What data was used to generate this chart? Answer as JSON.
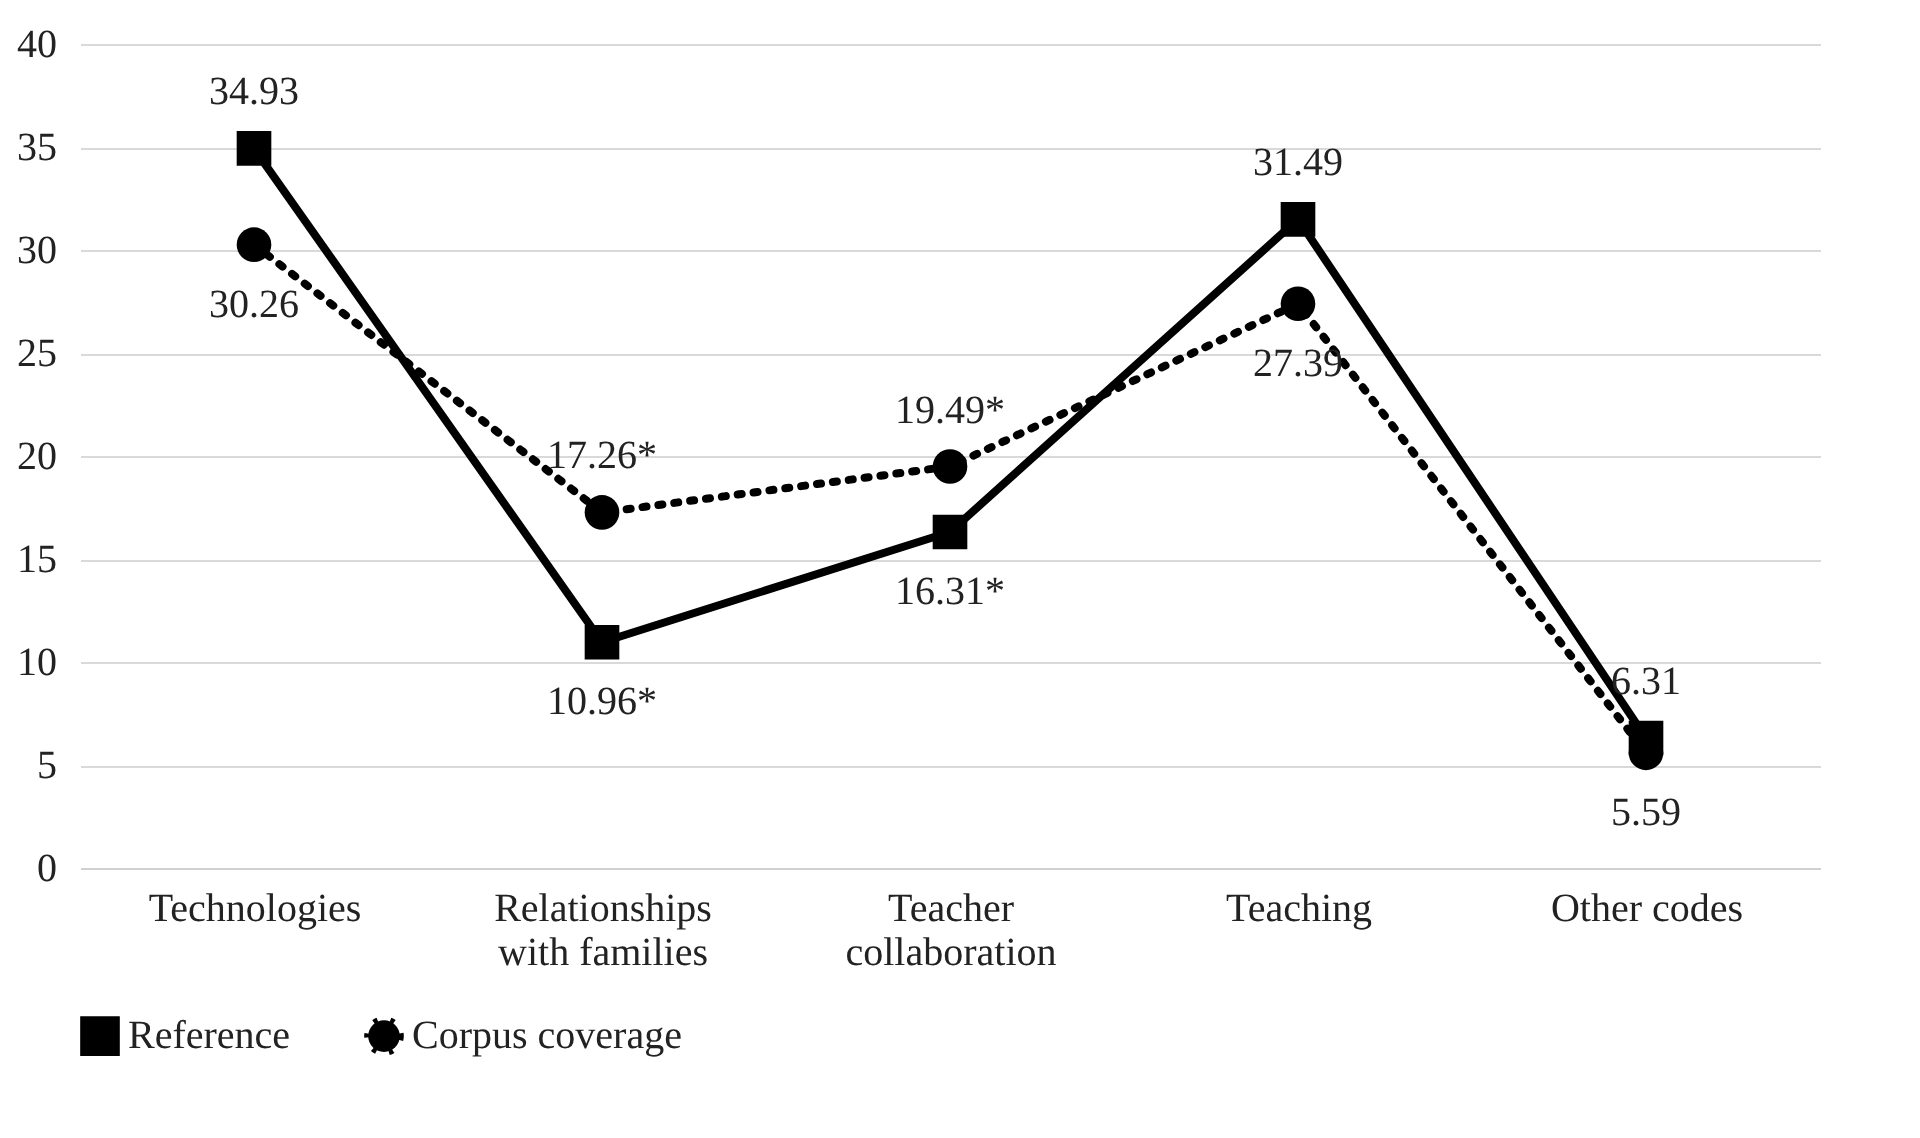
{
  "chart_data": {
    "type": "line",
    "categories": [
      "Technologies",
      "Relationships with families",
      "Teacher collaboration",
      "Teaching",
      "Other codes"
    ],
    "series": [
      {
        "name": "Reference",
        "color": "#000000",
        "marker": "square",
        "line_style": "solid",
        "values": [
          34.93,
          10.96,
          16.31,
          31.49,
          6.31
        ],
        "value_labels": [
          "34.93",
          "10.96*",
          "16.31*",
          "31.49",
          "6.31"
        ]
      },
      {
        "name": "Corpus coverage",
        "color": "#000000",
        "marker": "circle",
        "line_style": "dotted",
        "values": [
          30.26,
          17.26,
          19.49,
          27.39,
          5.59
        ],
        "value_labels": [
          "30.26",
          "17.26*",
          "19.49*",
          "27.39",
          "5.59"
        ]
      }
    ],
    "ylim": [
      0,
      40
    ],
    "yticks": [
      0,
      5,
      10,
      15,
      20,
      25,
      30,
      35,
      40
    ],
    "grid": "y",
    "legend": "bottom"
  }
}
